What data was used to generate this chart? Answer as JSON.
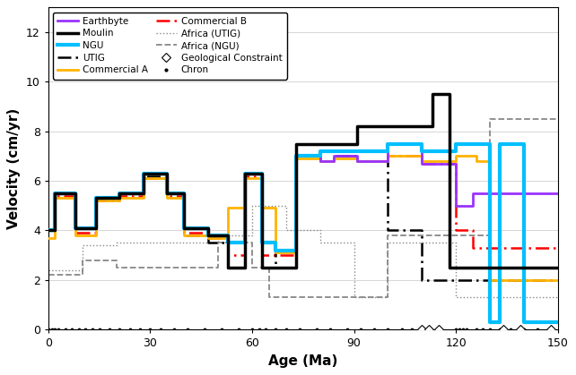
{
  "xlabel": "Age (Ma)",
  "ylabel": "Velocity (cm/yr)",
  "xlim": [
    0,
    150
  ],
  "ylim": [
    0,
    13
  ],
  "yticks": [
    0,
    2,
    4,
    6,
    8,
    10,
    12
  ],
  "xticks": [
    0,
    30,
    60,
    90,
    120,
    150
  ],
  "background_color": "#ffffff",
  "earthbyte": {
    "color": "#9933FF",
    "lw": 2.0,
    "x": [
      0,
      2,
      2,
      8,
      8,
      14,
      14,
      21,
      21,
      28,
      28,
      35,
      35,
      40,
      40,
      47,
      47,
      53,
      53,
      58,
      58,
      63,
      63,
      67,
      67,
      73,
      73,
      80,
      80,
      84,
      84,
      91,
      91,
      100,
      100,
      110,
      110,
      120,
      120,
      125,
      125,
      130,
      130,
      150
    ],
    "y": [
      4.0,
      4.0,
      5.5,
      5.5,
      4.1,
      4.1,
      5.3,
      5.3,
      5.5,
      5.5,
      6.3,
      6.3,
      5.5,
      5.5,
      4.1,
      4.1,
      3.8,
      3.8,
      3.5,
      3.5,
      6.3,
      6.3,
      3.5,
      3.5,
      3.2,
      3.2,
      7.0,
      7.0,
      6.8,
      6.8,
      7.0,
      7.0,
      6.8,
      6.8,
      7.5,
      7.5,
      6.7,
      6.7,
      5.0,
      5.0,
      5.5,
      5.5,
      5.5,
      5.5
    ]
  },
  "ngu": {
    "color": "#00BFFF",
    "lw": 3.0,
    "x": [
      0,
      2,
      2,
      8,
      8,
      14,
      14,
      21,
      21,
      28,
      28,
      35,
      35,
      40,
      40,
      47,
      47,
      53,
      53,
      58,
      58,
      63,
      63,
      67,
      67,
      73,
      73,
      80,
      80,
      84,
      84,
      91,
      91,
      100,
      100,
      110,
      110,
      120,
      120,
      126,
      126,
      130,
      130,
      133,
      133,
      140,
      140,
      150
    ],
    "y": [
      4.0,
      4.0,
      5.5,
      5.5,
      4.1,
      4.1,
      5.3,
      5.3,
      5.5,
      5.5,
      6.3,
      6.3,
      5.5,
      5.5,
      4.1,
      4.1,
      3.8,
      3.8,
      3.5,
      3.5,
      6.3,
      6.3,
      3.5,
      3.5,
      3.2,
      3.2,
      7.0,
      7.0,
      7.2,
      7.2,
      7.2,
      7.2,
      7.2,
      7.2,
      7.5,
      7.5,
      7.2,
      7.2,
      7.5,
      7.5,
      7.5,
      7.5,
      0.3,
      0.3,
      7.5,
      7.5,
      0.3,
      0.3
    ]
  },
  "commercial_a": {
    "color": "#FFB300",
    "lw": 2.0,
    "x": [
      0,
      2,
      2,
      8,
      8,
      14,
      14,
      21,
      21,
      28,
      28,
      35,
      35,
      40,
      40,
      47,
      47,
      53,
      53,
      58,
      58,
      63,
      63,
      67,
      67,
      73,
      73,
      80,
      80,
      84,
      84,
      91,
      91,
      100,
      100,
      110,
      110,
      120,
      120,
      126,
      126,
      130,
      130,
      133,
      133,
      150
    ],
    "y": [
      3.7,
      3.7,
      5.3,
      5.3,
      3.8,
      3.8,
      5.2,
      5.2,
      5.3,
      5.3,
      6.1,
      6.1,
      5.3,
      5.3,
      3.8,
      3.8,
      3.7,
      3.7,
      4.9,
      4.9,
      6.1,
      6.1,
      4.9,
      4.9,
      3.1,
      3.1,
      6.9,
      6.9,
      6.8,
      6.8,
      6.9,
      6.9,
      6.8,
      6.8,
      7.0,
      7.0,
      6.8,
      6.8,
      7.0,
      7.0,
      6.8,
      6.8,
      2.0,
      2.0,
      2.0,
      2.0
    ]
  },
  "africa_utig": {
    "color": "#888888",
    "lw": 1.0,
    "x": [
      0,
      10,
      10,
      20,
      20,
      30,
      30,
      40,
      40,
      50,
      50,
      60,
      60,
      70,
      70,
      80,
      80,
      90,
      90,
      100,
      100,
      110,
      110,
      120,
      120,
      130,
      130,
      140,
      140,
      150
    ],
    "y": [
      2.4,
      2.4,
      3.4,
      3.4,
      3.5,
      3.5,
      3.5,
      3.5,
      3.5,
      3.5,
      3.8,
      3.8,
      5.0,
      5.0,
      4.0,
      4.0,
      3.5,
      3.5,
      1.3,
      1.3,
      3.5,
      3.5,
      3.5,
      3.5,
      1.3,
      1.3,
      1.3,
      1.3,
      1.3,
      1.3
    ]
  },
  "moulin": {
    "color": "#000000",
    "lw": 2.5,
    "x": [
      0,
      2,
      2,
      8,
      8,
      14,
      14,
      21,
      21,
      28,
      28,
      35,
      35,
      40,
      40,
      47,
      47,
      53,
      53,
      58,
      58,
      63,
      63,
      67,
      67,
      73,
      73,
      80,
      80,
      84,
      84,
      91,
      91,
      100,
      100,
      110,
      110,
      113,
      113,
      118,
      118,
      122,
      122,
      125,
      125,
      150
    ],
    "y": [
      4.0,
      4.0,
      5.5,
      5.5,
      4.1,
      4.1,
      5.3,
      5.3,
      5.5,
      5.5,
      6.3,
      6.3,
      5.5,
      5.5,
      4.1,
      4.1,
      3.8,
      3.8,
      2.5,
      2.5,
      6.3,
      6.3,
      2.5,
      2.5,
      2.5,
      2.5,
      7.5,
      7.5,
      7.5,
      7.5,
      7.5,
      7.5,
      8.2,
      8.2,
      8.2,
      8.2,
      8.2,
      8.2,
      9.5,
      9.5,
      2.5,
      2.5,
      2.5,
      2.5,
      2.5,
      2.5
    ]
  },
  "utig": {
    "color": "#000000",
    "lw": 1.8,
    "x": [
      0,
      2,
      2,
      8,
      8,
      14,
      14,
      21,
      21,
      28,
      28,
      35,
      35,
      40,
      40,
      47,
      47,
      53,
      53,
      58,
      58,
      63,
      63,
      67,
      67,
      73,
      73,
      80,
      80,
      84,
      84,
      91,
      91,
      100,
      100,
      110,
      110,
      120,
      120,
      125,
      125,
      130,
      130,
      150
    ],
    "y": [
      4.0,
      4.0,
      5.5,
      5.5,
      4.1,
      4.1,
      5.3,
      5.3,
      5.5,
      5.5,
      6.2,
      6.2,
      5.5,
      5.5,
      3.8,
      3.8,
      3.5,
      3.5,
      2.5,
      2.5,
      6.3,
      6.3,
      2.5,
      2.5,
      3.2,
      3.2,
      7.0,
      7.0,
      6.8,
      6.8,
      7.0,
      7.0,
      6.8,
      6.8,
      4.0,
      4.0,
      2.0,
      2.0,
      2.0,
      2.0,
      2.0,
      2.0,
      2.0,
      2.0
    ]
  },
  "commercial_b": {
    "color": "#FF0000",
    "lw": 1.8,
    "x": [
      0,
      2,
      2,
      8,
      8,
      14,
      14,
      21,
      21,
      28,
      28,
      35,
      35,
      40,
      40,
      47,
      47,
      53,
      53,
      58,
      58,
      63,
      63,
      67,
      67,
      73,
      73,
      80,
      80,
      84,
      84,
      91,
      91,
      100,
      100,
      110,
      110,
      120,
      120,
      125,
      125,
      133,
      133,
      150
    ],
    "y": [
      4.0,
      4.0,
      5.4,
      5.4,
      3.9,
      3.9,
      5.2,
      5.2,
      5.4,
      5.4,
      6.1,
      6.1,
      5.4,
      5.4,
      3.9,
      3.9,
      3.7,
      3.7,
      3.0,
      3.0,
      6.2,
      6.2,
      3.0,
      3.0,
      3.0,
      3.0,
      7.0,
      7.0,
      6.8,
      6.8,
      7.0,
      7.0,
      6.8,
      6.8,
      7.0,
      7.0,
      6.7,
      6.7,
      4.0,
      4.0,
      3.3,
      3.3,
      3.3,
      3.3
    ]
  },
  "africa_ngu": {
    "color": "#888888",
    "lw": 1.3,
    "x": [
      0,
      10,
      10,
      20,
      20,
      35,
      35,
      50,
      50,
      60,
      60,
      65,
      65,
      85,
      85,
      100,
      100,
      110,
      110,
      120,
      120,
      130,
      130,
      150
    ],
    "y": [
      2.2,
      2.2,
      2.8,
      2.8,
      2.5,
      2.5,
      2.5,
      2.5,
      3.5,
      3.5,
      2.5,
      2.5,
      1.3,
      1.3,
      1.3,
      1.3,
      3.8,
      3.8,
      3.8,
      3.8,
      3.8,
      3.8,
      8.5,
      8.5
    ]
  },
  "chron_x": [
    0,
    1,
    2,
    3,
    5,
    7,
    9,
    11,
    13,
    15,
    18,
    21,
    24,
    27,
    30,
    33,
    37,
    41,
    46,
    51,
    56,
    60,
    62,
    64,
    67,
    70,
    74,
    79,
    83,
    88,
    92,
    96,
    100,
    104,
    107,
    120,
    121,
    122,
    123,
    126,
    128,
    130,
    133,
    136,
    140,
    144,
    148
  ],
  "geol_x": [
    110,
    112,
    115,
    134,
    139,
    148
  ],
  "fig_width": 6.42,
  "fig_height": 4.19,
  "dpi": 100
}
